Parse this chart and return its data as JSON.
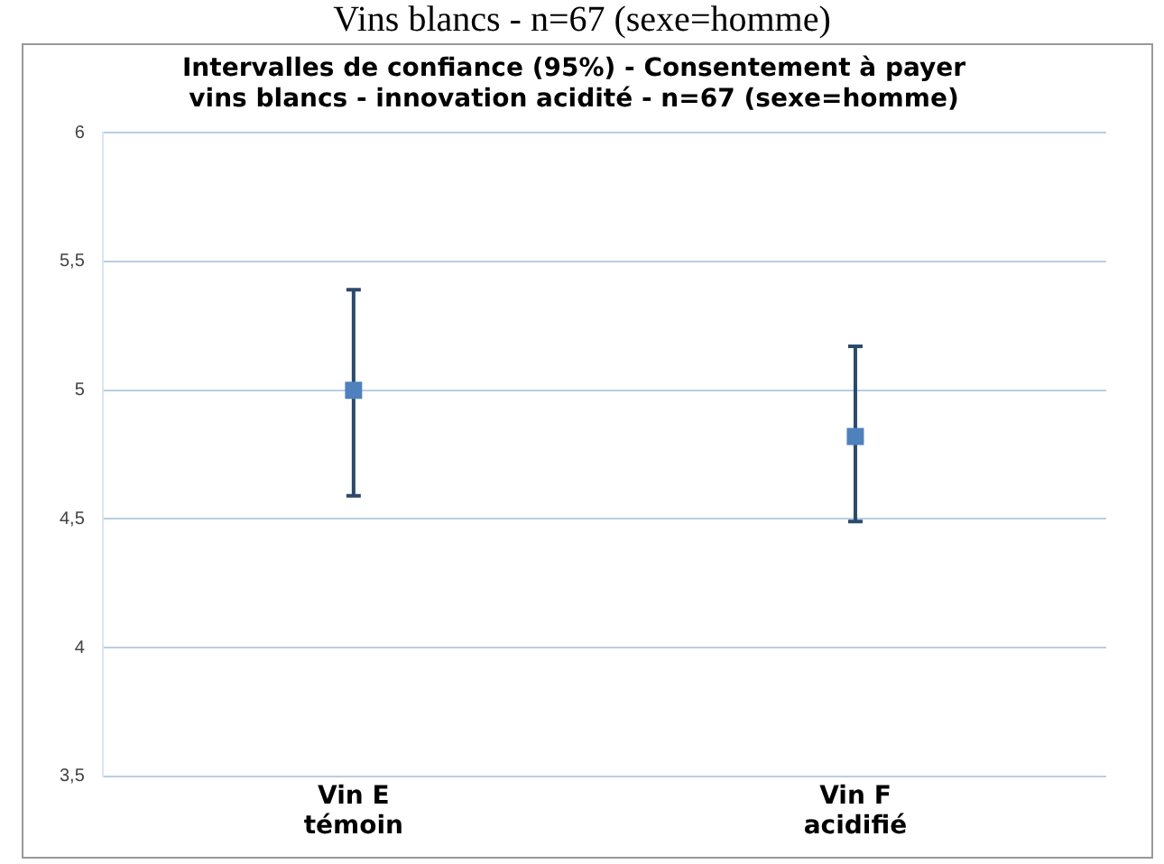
{
  "chart_data": {
    "type": "scatter",
    "title": "Intervalles de confiance (95%) - Consentement à payer\nvins blancs - innovation acidité - n=67 (sexe=homme)",
    "annotations": [
      "Vins blancs - n=67 (sexe=homme)"
    ],
    "categories": [
      "Vin E\ntémoin",
      "Vin F\nacidifié"
    ],
    "series": [
      {
        "color": "#4f81bd",
        "values": [
          5.0,
          4.82
        ],
        "errors": [
          [
            4.59,
            5.39
          ],
          [
            4.49,
            5.17
          ]
        ]
      }
    ],
    "ylim": [
      3.5,
      6
    ],
    "yticks": [
      {
        "value": 3.5,
        "label": "3,5"
      },
      {
        "value": 4,
        "label": "4"
      },
      {
        "value": 4.5,
        "label": "4,5"
      },
      {
        "value": 5,
        "label": "5"
      },
      {
        "value": 5.5,
        "label": "5,5"
      },
      {
        "value": 6,
        "label": "6"
      }
    ],
    "grid": "y",
    "marker": "square",
    "legend": false
  }
}
